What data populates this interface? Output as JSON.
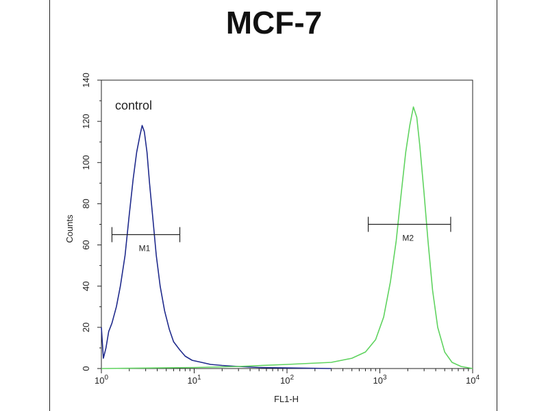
{
  "chart_data": {
    "type": "line",
    "title": "MCF-7",
    "xlabel": "FL1-H",
    "ylabel": "Counts",
    "x_scale": "log",
    "xlim": [
      1,
      10000
    ],
    "ylim": [
      0,
      140
    ],
    "x_ticks": [
      {
        "value": 1,
        "base": "10",
        "exp": "0"
      },
      {
        "value": 10,
        "base": "10",
        "exp": "1"
      },
      {
        "value": 100,
        "base": "10",
        "exp": "2"
      },
      {
        "value": 1000,
        "base": "10",
        "exp": "3"
      },
      {
        "value": 10000,
        "base": "10",
        "exp": "4"
      }
    ],
    "y_ticks": [
      0,
      20,
      40,
      60,
      80,
      100,
      120,
      140
    ],
    "grid": false,
    "annotation": "control",
    "series": [
      {
        "color": "#1f2a8c",
        "x": [
          1.0,
          1.05,
          1.12,
          1.2,
          1.3,
          1.45,
          1.6,
          1.8,
          2.0,
          2.2,
          2.4,
          2.6,
          2.75,
          2.9,
          3.1,
          3.3,
          3.6,
          3.9,
          4.3,
          4.8,
          5.4,
          6.0,
          7.0,
          8.0,
          9.5,
          12,
          15,
          20,
          30,
          50,
          100,
          300
        ],
        "y": [
          20,
          5,
          10,
          18,
          22,
          30,
          40,
          55,
          75,
          92,
          105,
          113,
          118,
          115,
          105,
          90,
          72,
          55,
          40,
          28,
          19,
          13,
          9,
          6,
          4,
          3,
          2,
          1.5,
          1,
          0.5,
          0.3,
          0
        ]
      },
      {
        "color": "#5fd35f",
        "x": [
          1.0,
          10,
          30,
          100,
          300,
          500,
          700,
          900,
          1100,
          1300,
          1500,
          1700,
          1900,
          2100,
          2300,
          2500,
          2700,
          3000,
          3300,
          3700,
          4200,
          5000,
          6000,
          7500,
          10000
        ],
        "y": [
          0,
          0.5,
          1,
          2,
          3,
          5,
          8,
          14,
          25,
          42,
          62,
          85,
          105,
          118,
          127,
          122,
          108,
          85,
          62,
          38,
          20,
          8,
          3,
          1,
          0
        ]
      }
    ],
    "markers": [
      {
        "label": "M1",
        "x_start": 1.3,
        "x_end": 7.0,
        "y": 65
      },
      {
        "label": "M2",
        "x_start": 750,
        "x_end": 5800,
        "y": 70
      }
    ]
  }
}
